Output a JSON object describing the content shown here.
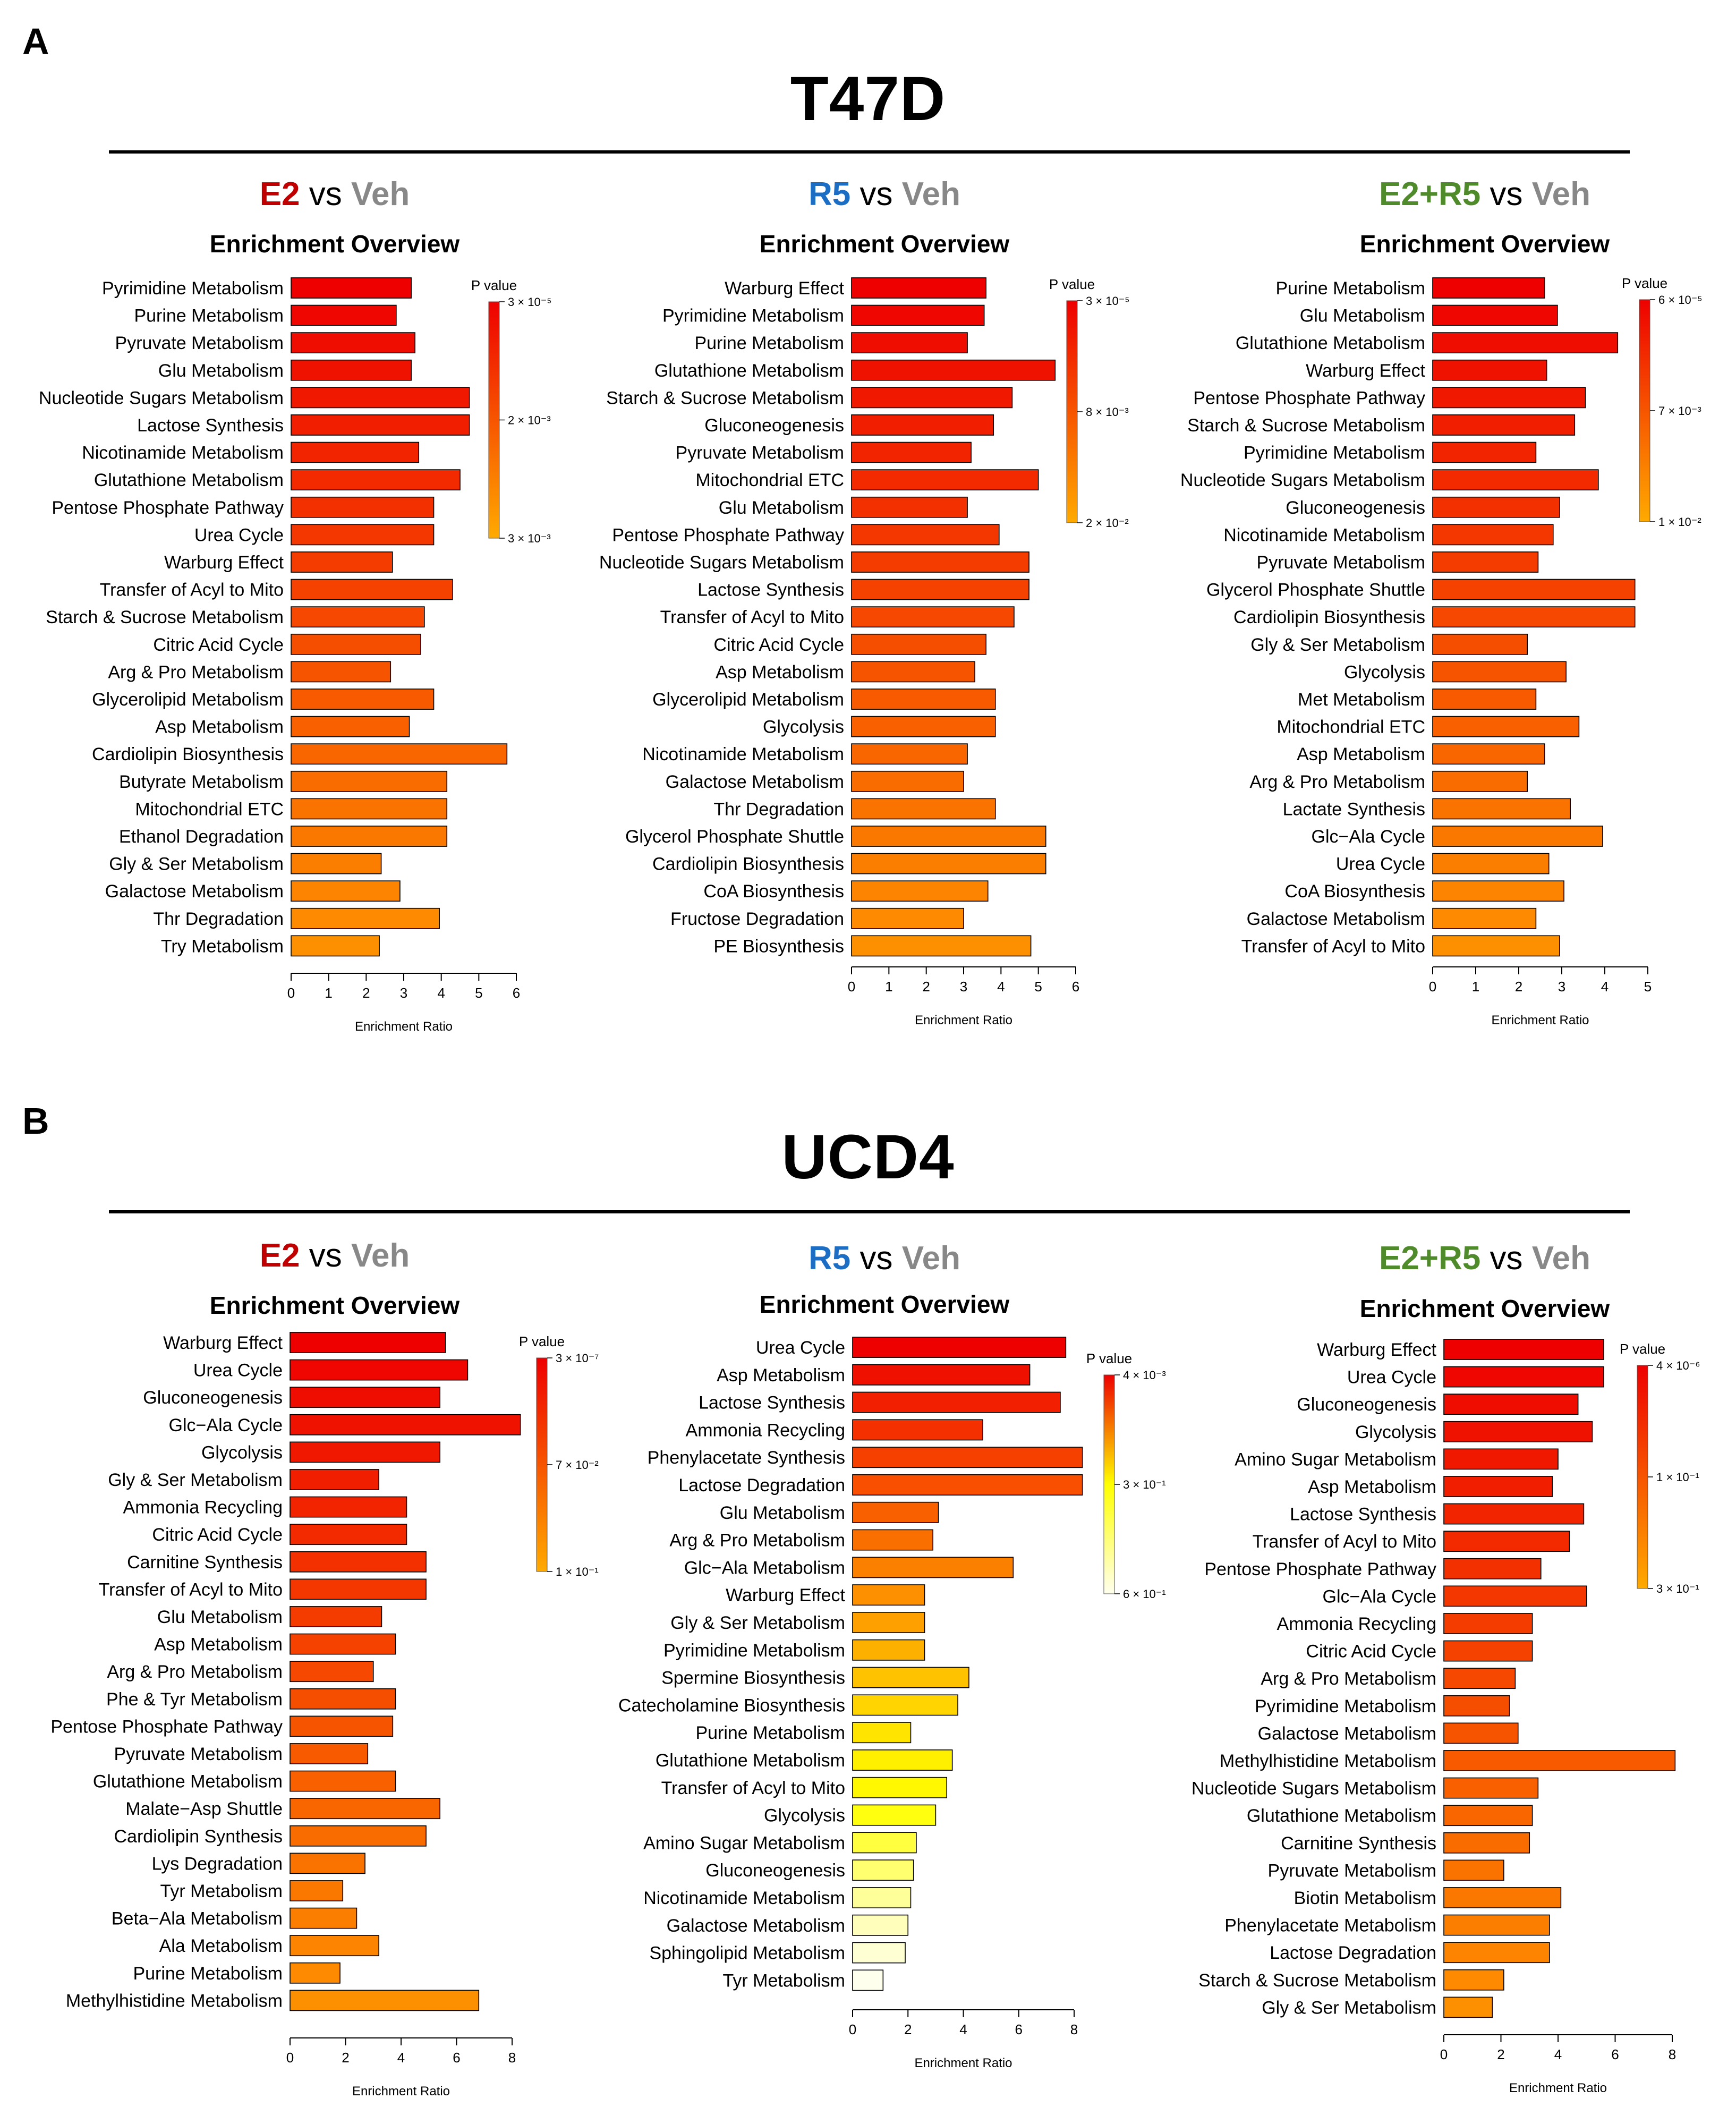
{
  "figure": {
    "panelA": {
      "letter": "A",
      "title": "T47D",
      "charts": [
        {
          "condition": "E2",
          "vs": "vs",
          "reference": "Veh",
          "condition_color": "#c00000",
          "subtitle": "Enrichment Overview",
          "xlabel": "Enrichment Ratio",
          "legend_title": "P value",
          "xticks": [
            0,
            1,
            2,
            3,
            4,
            5,
            6
          ],
          "xmax": 6,
          "legend_ticks": [
            "3 × 10⁻⁵",
            "2 × 10⁻³",
            "3 × 10⁻³"
          ],
          "legend_colors": [
            "#ee0000",
            "#ffaa00"
          ],
          "pathways": [
            "Pyrimidine Metabolism",
            "Purine Metabolism",
            "Pyruvate Metabolism",
            "Glu Metabolism",
            "Nucleotide Sugars Metabolism",
            "Lactose Synthesis",
            "Nicotinamide Metabolism",
            "Glutathione Metabolism",
            "Pentose Phosphate Pathway",
            "Urea Cycle",
            "Warburg Effect",
            "Transfer of Acyl to Mito",
            "Starch & Sucrose Metabolism",
            "Citric Acid Cycle",
            "Arg & Pro Metabolism",
            "Glycerolipid Metabolism",
            "Asp Metabolism",
            "Cardiolipin Biosynthesis",
            "Butyrate Metabolism",
            "Mitochondrial ETC",
            "Ethanol Degradation",
            "Gly & Ser Metabolism",
            "Galactose Metabolism",
            "Thr Degradation",
            "Try Metabolism"
          ],
          "values": [
            3.2,
            2.8,
            3.3,
            3.2,
            4.75,
            4.75,
            3.4,
            4.5,
            3.8,
            3.8,
            2.7,
            4.3,
            3.55,
            3.45,
            2.65,
            3.8,
            3.15,
            5.75,
            4.15,
            4.15,
            4.15,
            2.4,
            2.9,
            3.95,
            2.35
          ],
          "colors": [
            "#ee0000",
            "#ef0600",
            "#ef0c00",
            "#f01200",
            "#f11800",
            "#f11e00",
            "#f22400",
            "#f32a00",
            "#f33000",
            "#f43600",
            "#f43c00",
            "#f54200",
            "#f64800",
            "#f64e00",
            "#f75400",
            "#f85a00",
            "#f86000",
            "#f96600",
            "#f96c00",
            "#fa7200",
            "#fb7800",
            "#fb7e00",
            "#fc8400",
            "#fd8a00",
            "#fd9000"
          ]
        },
        {
          "condition": "R5",
          "vs": "vs",
          "reference": "Veh",
          "condition_color": "#1c6ec4",
          "subtitle": "Enrichment Overview",
          "xlabel": "Enrichment Ratio",
          "legend_title": "P value",
          "xticks": [
            0,
            1,
            2,
            3,
            4,
            5,
            6
          ],
          "xmax": 6,
          "legend_ticks": [
            "3 × 10⁻⁵",
            "8 × 10⁻³",
            "2 × 10⁻²"
          ],
          "legend_colors": [
            "#ee0000",
            "#ffaa00"
          ],
          "pathways": [
            "Warburg Effect",
            "Pyrimidine Metabolism",
            "Purine Metabolism",
            "Glutathione Metabolism",
            "Starch & Sucrose Metabolism",
            "Gluconeogenesis",
            "Pyruvate Metabolism",
            "Mitochondrial ETC",
            "Glu Metabolism",
            "Pentose Phosphate Pathway",
            "Nucleotide Sugars Metabolism",
            "Lactose Synthesis",
            "Transfer of Acyl to Mito",
            "Citric Acid Cycle",
            "Asp Metabolism",
            "Glycerolipid Metabolism",
            "Glycolysis",
            "Nicotinamide Metabolism",
            "Galactose Metabolism",
            "Thr Degradation",
            "Glycerol Phosphate Shuttle",
            "Cardiolipin Biosynthesis",
            "CoA Biosynthesis",
            "Fructose Degradation",
            "PE Biosynthesis"
          ],
          "values": [
            3.6,
            3.55,
            3.1,
            5.45,
            4.3,
            3.8,
            3.2,
            5.0,
            3.1,
            3.95,
            4.75,
            4.75,
            4.35,
            3.6,
            3.3,
            3.85,
            3.85,
            3.1,
            3.0,
            3.85,
            5.2,
            5.2,
            3.65,
            3.0,
            4.8
          ],
          "colors": [
            "#ee0000",
            "#ef0600",
            "#ef0c00",
            "#f01200",
            "#f11800",
            "#f11e00",
            "#f22400",
            "#f32a00",
            "#f33000",
            "#f43600",
            "#f43c00",
            "#f54200",
            "#f64800",
            "#f64e00",
            "#f75400",
            "#f85a00",
            "#f86000",
            "#f96600",
            "#f96c00",
            "#fa7200",
            "#fb7800",
            "#fb7e00",
            "#fc8400",
            "#fd8a00",
            "#fd9000"
          ]
        },
        {
          "condition": "E2+R5",
          "vs": "vs",
          "reference": "Veh",
          "condition_color": "#4f8a2b",
          "subtitle": "Enrichment Overview",
          "xlabel": "Enrichment Ratio",
          "legend_title": "P value",
          "xticks": [
            0,
            1,
            2,
            3,
            4,
            5
          ],
          "xmax": 5,
          "legend_ticks": [
            "6 × 10⁻⁵",
            "7 × 10⁻³",
            "1 × 10⁻²"
          ],
          "legend_colors": [
            "#ee0000",
            "#ffaa00"
          ],
          "pathways": [
            "Purine Metabolism",
            "Glu Metabolism",
            "Glutathione Metabolism",
            "Warburg Effect",
            "Pentose Phosphate Pathway",
            "Starch & Sucrose Metabolism",
            "Pyrimidine Metabolism",
            "Nucleotide Sugars Metabolism",
            "Gluconeogenesis",
            "Nicotinamide Metabolism",
            "Pyruvate Metabolism",
            "Glycerol Phosphate Shuttle",
            "Cardiolipin Biosynthesis",
            "Gly & Ser Metabolism",
            "Glycolysis",
            "Met Metabolism",
            "Mitochondrial ETC",
            "Asp Metabolism",
            "Arg & Pro Metabolism",
            "Lactate Synthesis",
            "Glc−Ala Cycle",
            "Urea Cycle",
            "CoA Biosynthesis",
            "Galactose Metabolism",
            "Transfer of Acyl to Mito"
          ],
          "values": [
            2.6,
            2.9,
            4.3,
            2.65,
            3.55,
            3.3,
            2.4,
            3.85,
            2.95,
            2.8,
            2.45,
            4.7,
            4.7,
            2.2,
            3.1,
            2.4,
            3.4,
            2.6,
            2.2,
            3.2,
            3.95,
            2.7,
            3.05,
            2.4,
            2.95
          ],
          "colors": [
            "#ee0000",
            "#ef0600",
            "#ef0c00",
            "#f01200",
            "#f11800",
            "#f11e00",
            "#f22400",
            "#f32a00",
            "#f33000",
            "#f43600",
            "#f43c00",
            "#f54200",
            "#f64800",
            "#f64e00",
            "#f75400",
            "#f85a00",
            "#f86000",
            "#f96600",
            "#f96c00",
            "#fa7200",
            "#fb7800",
            "#fb7e00",
            "#fc8400",
            "#fd8a00",
            "#fd9000"
          ]
        }
      ]
    },
    "panelB": {
      "letter": "B",
      "title": "UCD4",
      "charts": [
        {
          "condition": "E2",
          "vs": "vs",
          "reference": "Veh",
          "condition_color": "#c00000",
          "subtitle": "Enrichment Overview",
          "xlabel": "Enrichment Ratio",
          "legend_title": "P value",
          "xticks": [
            0,
            2,
            4,
            6,
            8
          ],
          "xmax": 8,
          "legend_ticks": [
            "3 × 10⁻⁷",
            "7 × 10⁻²",
            "1 × 10⁻¹"
          ],
          "legend_colors": [
            "#ee0000",
            "#ffaa00"
          ],
          "pathways": [
            "Warburg Effect",
            "Urea Cycle",
            "Gluconeogenesis",
            "Glc−Ala Cycle",
            "Glycolysis",
            "Gly & Ser Metabolism",
            "Ammonia Recycling",
            "Citric Acid Cycle",
            "Carnitine Synthesis",
            "Transfer of Acyl to Mito",
            "Glu Metabolism",
            "Asp Metabolism",
            "Arg & Pro Metabolism",
            "Phe & Tyr Metabolism",
            "Pentose Phosphate Pathway",
            "Pyruvate Metabolism",
            "Glutathione Metabolism",
            "Malate−Asp Shuttle",
            "Cardiolipin Synthesis",
            "Lys Degradation",
            "Tyr Metabolism",
            "Beta−Ala Metabolism",
            "Ala Metabolism",
            "Purine Metabolism",
            "Methylhistidine Metabolism"
          ],
          "values": [
            5.6,
            6.4,
            5.4,
            8.3,
            5.4,
            3.2,
            4.2,
            4.2,
            4.9,
            4.9,
            3.3,
            3.8,
            3.0,
            3.8,
            3.7,
            2.8,
            3.8,
            5.4,
            4.9,
            2.7,
            1.9,
            2.4,
            3.2,
            1.8,
            6.8
          ],
          "colors": [
            "#ee0000",
            "#ef0600",
            "#ef0c00",
            "#f01200",
            "#f11800",
            "#f11e00",
            "#f22400",
            "#f32a00",
            "#f33000",
            "#f43600",
            "#f43c00",
            "#f54200",
            "#f64800",
            "#f64e00",
            "#f75400",
            "#f85a00",
            "#f86000",
            "#f96600",
            "#f96c00",
            "#fa7200",
            "#fb7800",
            "#fb7e00",
            "#fc8400",
            "#fd8a00",
            "#fd9000"
          ]
        },
        {
          "condition": "R5",
          "vs": "vs",
          "reference": "Veh",
          "condition_color": "#1c6ec4",
          "subtitle": "Enrichment Overview",
          "xlabel": "Enrichment Ratio",
          "legend_title": "P value",
          "xticks": [
            0,
            2,
            4,
            6,
            8
          ],
          "xmax": 8,
          "legend_ticks": [
            "4 × 10⁻³",
            "3 × 10⁻¹",
            "6 × 10⁻¹"
          ],
          "legend_colors": [
            "#ee0000",
            "#ffff00",
            "#ffffee"
          ],
          "pathways": [
            "Urea Cycle",
            "Asp Metabolism",
            "Lactose Synthesis",
            "Ammonia Recycling",
            "Phenylacetate Synthesis",
            "Lactose Degradation",
            "Glu Metabolism",
            "Arg & Pro Metabolism",
            "Glc−Ala Metabolism",
            "Warburg Effect",
            "Gly & Ser Metabolism",
            "Pyrimidine Metabolism",
            "Spermine Biosynthesis",
            "Catecholamine Biosynthesis",
            "Purine Metabolism",
            "Glutathione Metabolism",
            "Transfer of Acyl to Mito",
            "Glycolysis",
            "Amino Sugar Metabolism",
            "Gluconeogenesis",
            "Nicotinamide Metabolism",
            "Galactose Metabolism",
            "Sphingolipid Metabolism",
            "Tyr Metabolism"
          ],
          "values": [
            7.7,
            6.4,
            7.5,
            4.7,
            8.3,
            8.3,
            3.1,
            2.9,
            5.8,
            2.6,
            2.6,
            2.6,
            4.2,
            3.8,
            2.1,
            3.6,
            3.4,
            3.0,
            2.3,
            2.2,
            2.1,
            2.0,
            1.9,
            1.1
          ],
          "colors": [
            "#ee0000",
            "#f01000",
            "#f22000",
            "#f43000",
            "#f64000",
            "#f85000",
            "#f96000",
            "#fa7000",
            "#fb8000",
            "#fc9000",
            "#fda000",
            "#feb000",
            "#fec200",
            "#ffd400",
            "#ffe400",
            "#fff000",
            "#fff800",
            "#ffff10",
            "#ffff40",
            "#ffff70",
            "#ffff99",
            "#ffffbb",
            "#ffffd4",
            "#ffffee"
          ]
        },
        {
          "condition": "E2+R5",
          "vs": "vs",
          "reference": "Veh",
          "condition_color": "#4f8a2b",
          "subtitle": "Enrichment Overview",
          "xlabel": "Enrichment Ratio",
          "legend_title": "P value",
          "xticks": [
            0,
            2,
            4,
            6,
            8
          ],
          "xmax": 8,
          "legend_ticks": [
            "4 × 10⁻⁶",
            "1 × 10⁻¹",
            "3 × 10⁻¹"
          ],
          "legend_colors": [
            "#ee0000",
            "#ffaa00"
          ],
          "pathways": [
            "Warburg Effect",
            "Urea Cycle",
            "Gluconeogenesis",
            "Glycolysis",
            "Amino Sugar Metabolism",
            "Asp Metabolism",
            "Lactose Synthesis",
            "Transfer of Acyl to Mito",
            "Pentose Phosphate Pathway",
            "Glc−Ala Cycle",
            "Ammonia Recycling",
            "Citric Acid Cycle",
            "Arg & Pro Metabolism",
            "Pyrimidine Metabolism",
            "Galactose Metabolism",
            "Methylhistidine Metabolism",
            "Nucleotide Sugars Metabolism",
            "Glutathione Metabolism",
            "Carnitine Synthesis",
            "Pyruvate Metabolism",
            "Biotin Metabolism",
            "Phenylacetate Metabolism",
            "Lactose Degradation",
            "Starch & Sucrose Metabolism",
            "Gly & Ser Metabolism"
          ],
          "values": [
            5.6,
            5.6,
            4.7,
            5.2,
            4.0,
            3.8,
            4.9,
            4.4,
            3.4,
            5.0,
            3.1,
            3.1,
            2.5,
            2.3,
            2.6,
            8.1,
            3.3,
            3.1,
            3.0,
            2.1,
            4.1,
            3.7,
            3.7,
            2.1,
            1.7
          ],
          "colors": [
            "#ee0000",
            "#ef0600",
            "#ef0c00",
            "#f01200",
            "#f11800",
            "#f11e00",
            "#f22400",
            "#f32a00",
            "#f33000",
            "#f43600",
            "#f43c00",
            "#f54200",
            "#f64800",
            "#f64e00",
            "#f75400",
            "#f85a00",
            "#f86000",
            "#f96600",
            "#f96c00",
            "#fa7200",
            "#fb7800",
            "#fb7e00",
            "#fc8400",
            "#fd8a00",
            "#fd9000"
          ]
        }
      ]
    }
  }
}
